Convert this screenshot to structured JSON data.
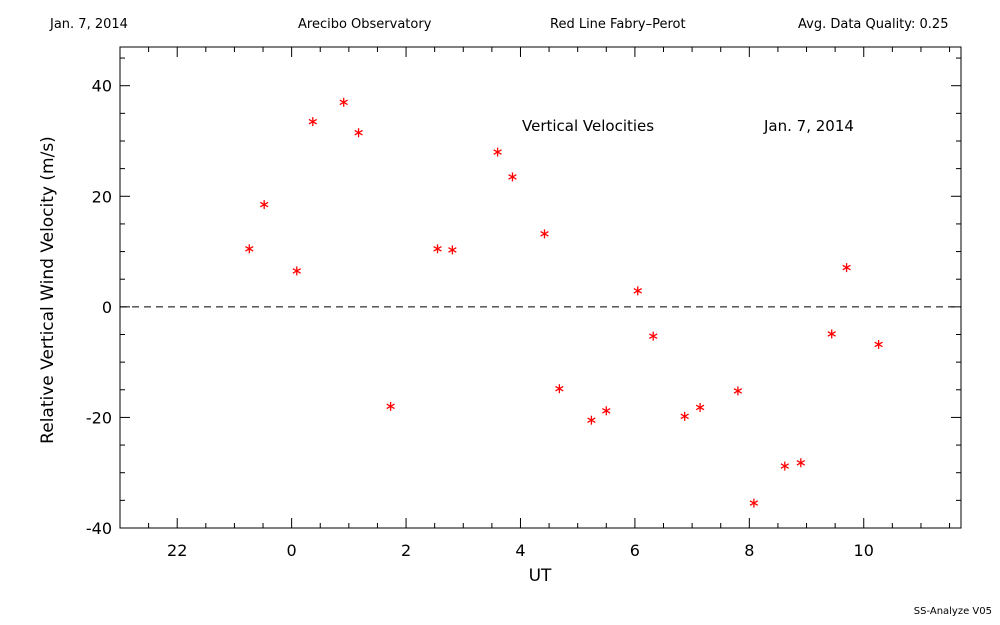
{
  "header": {
    "date": "Jan. 7, 2014",
    "observatory": "Arecibo Observatory",
    "instrument": "Red Line Fabry–Perot",
    "quality": "Avg. Data Quality: 0.25"
  },
  "footer": {
    "version": "SS-Analyze V05"
  },
  "chart_data": {
    "type": "scatter",
    "title": "Vertical Velocities",
    "date_label": "Jan. 7, 2014",
    "xlabel": "UT",
    "ylabel": "Relative Vertical Wind Velocity (m/s)",
    "xlim": [
      -3.0,
      11.7
    ],
    "ylim": [
      -40,
      47
    ],
    "xticks": [
      22,
      0,
      2,
      4,
      6,
      8,
      10
    ],
    "yticks": [
      40,
      20,
      0,
      -20,
      -40
    ],
    "reference_line": 0,
    "marker": "asterisk",
    "marker_color": "#ff0000",
    "x": [
      -0.74,
      -0.48,
      0.09,
      0.37,
      0.91,
      1.17,
      1.73,
      2.55,
      2.81,
      3.6,
      3.86,
      4.42,
      4.68,
      5.24,
      5.5,
      6.05,
      6.32,
      6.87,
      7.14,
      7.8,
      8.08,
      8.62,
      8.9,
      9.44,
      9.7,
      10.26
    ],
    "y": [
      10.5,
      18.5,
      6.5,
      33.5,
      37.0,
      31.5,
      -18.0,
      10.5,
      10.3,
      28.0,
      23.5,
      13.2,
      -14.8,
      -20.5,
      -18.8,
      2.9,
      -5.3,
      -19.8,
      -18.2,
      -15.2,
      -35.5,
      -28.8,
      -28.2,
      -4.9,
      7.1,
      -6.8
    ]
  }
}
